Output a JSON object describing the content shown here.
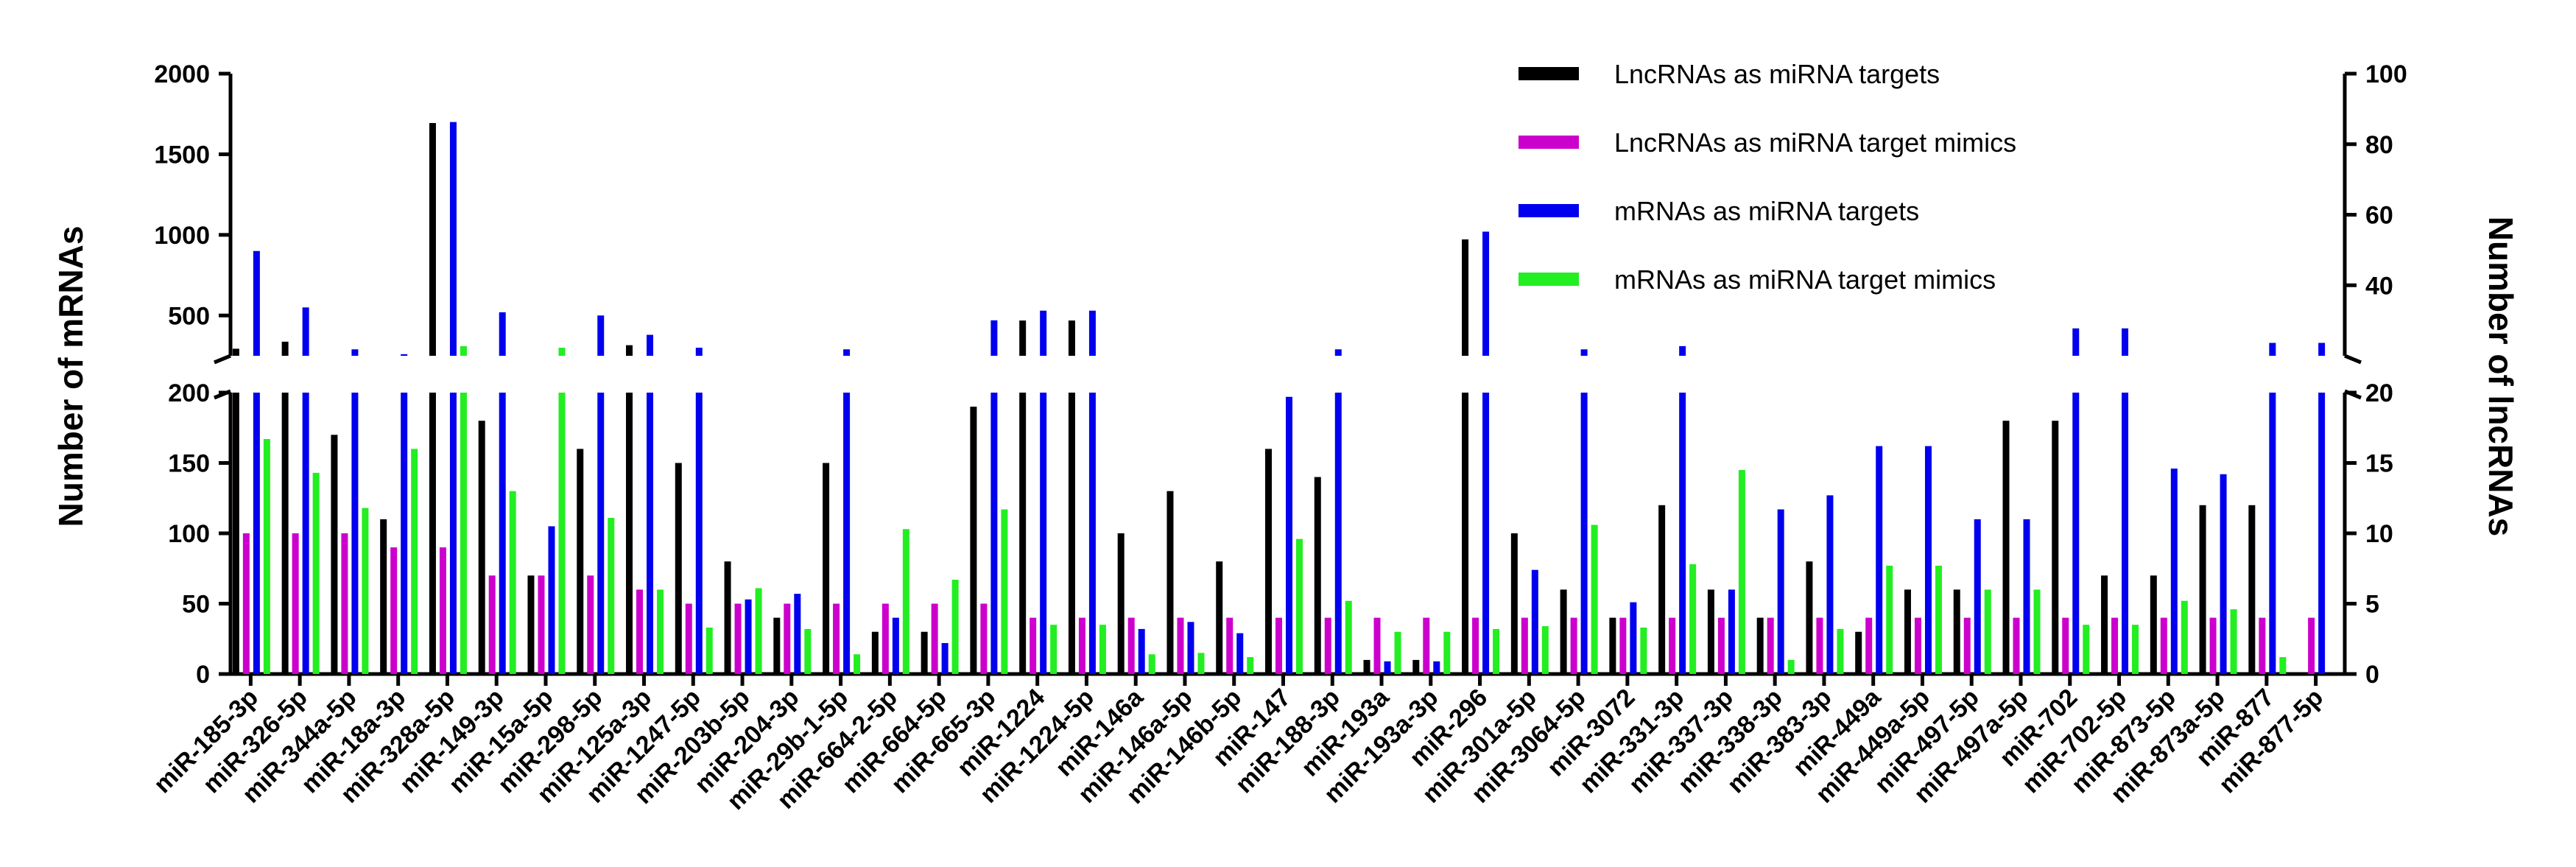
{
  "chart_data": {
    "type": "bar",
    "title": "",
    "xlabel": "",
    "ylabel_left": "Number of mRNAs",
    "ylabel_right": "Number of lncRNAs",
    "y_axis_break": true,
    "left_axis": {
      "lower_range": [
        0,
        200
      ],
      "lower_ticks": [
        "0",
        "50",
        "100",
        "150",
        "200"
      ],
      "upper_range": [
        250,
        2000
      ],
      "upper_ticks": [
        "500",
        "1000",
        "1500",
        "2000"
      ]
    },
    "right_axis": {
      "lower_range": [
        0,
        20
      ],
      "lower_ticks": [
        "0",
        "5",
        "10",
        "15",
        "20"
      ],
      "upper_range": [
        20,
        100
      ],
      "upper_ticks": [
        "20",
        "40",
        "60",
        "80",
        "100"
      ]
    },
    "legend_position": "top-right",
    "grid": false,
    "categories": [
      "miR-185-3p",
      "miR-326-5p",
      "miR-344a-5p",
      "miR-18a-3p",
      "miR-328a-5p",
      "miR-149-3p",
      "miR-15a-5p",
      "miR-298-5p",
      "miR-125a-3p",
      "miR-1247-5p",
      "miR-203b-5p",
      "miR-204-3p",
      "miR-29b-1-5p",
      "miR-664-2-5p",
      "miR-664-5p",
      "miR-665-3p",
      "miR-1224",
      "miR-1224-5p",
      "miR-146a",
      "miR-146a-5p",
      "miR-146b-5p",
      "miR-147",
      "miR-188-3p",
      "miR-193a",
      "miR-193a-3p",
      "miR-296",
      "miR-301a-5p",
      "miR-3064-5p",
      "miR-3072",
      "miR-331-3p",
      "miR-337-3p",
      "miR-338-3p",
      "miR-383-3p",
      "miR-449a",
      "miR-449a-5p",
      "miR-497-5p",
      "miR-497a-5p",
      "miR-702",
      "miR-702-5p",
      "miR-873-5p",
      "miR-873a-5p",
      "miR-877",
      "miR-877-5p"
    ],
    "series": [
      {
        "name": "LncRNAs as miRNA targets",
        "color": "#000000",
        "axis": "right",
        "values": [
          22,
          24,
          17,
          11,
          86,
          18,
          7,
          16,
          23,
          15,
          8,
          4,
          15,
          3,
          3,
          19,
          30,
          30,
          10,
          13,
          8,
          16,
          14,
          1,
          1,
          53,
          10,
          6,
          4,
          12,
          6,
          4,
          8,
          3,
          6,
          6,
          18,
          18,
          7,
          7,
          12,
          12,
          0
        ]
      },
      {
        "name": "LncRNAs as miRNA target mimics",
        "color": "#cc00cc",
        "axis": "right",
        "values": [
          10,
          10,
          10,
          9,
          9,
          7,
          7,
          7,
          6,
          5,
          5,
          5,
          5,
          5,
          5,
          5,
          4,
          4,
          4,
          4,
          4,
          4,
          4,
          4,
          4,
          4,
          4,
          4,
          4,
          4,
          4,
          4,
          4,
          4,
          4,
          4,
          4,
          4,
          4,
          4,
          4,
          4,
          4
        ]
      },
      {
        "name": "mRNAs as miRNA targets",
        "color": "#0000ee",
        "axis": "left",
        "values": [
          900,
          550,
          290,
          260,
          1700,
          520,
          105,
          500,
          380,
          300,
          53,
          57,
          290,
          40,
          22,
          470,
          530,
          530,
          32,
          37,
          29,
          197,
          290,
          9,
          9,
          1020,
          74,
          290,
          51,
          310,
          60,
          117,
          127,
          162,
          162,
          110,
          110,
          420,
          420,
          146,
          142,
          330,
          330
        ]
      },
      {
        "name": "mRNAs as miRNA target mimics",
        "color": "#22ee22",
        "axis": "left",
        "values": [
          167,
          143,
          118,
          160,
          310,
          130,
          300,
          111,
          60,
          33,
          61,
          32,
          14,
          103,
          67,
          117,
          35,
          35,
          14,
          15,
          12,
          96,
          52,
          30,
          30,
          32,
          34,
          106,
          33,
          78,
          145,
          10,
          32,
          77,
          77,
          60,
          60,
          35,
          35,
          52,
          46,
          12,
          0
        ]
      }
    ]
  }
}
